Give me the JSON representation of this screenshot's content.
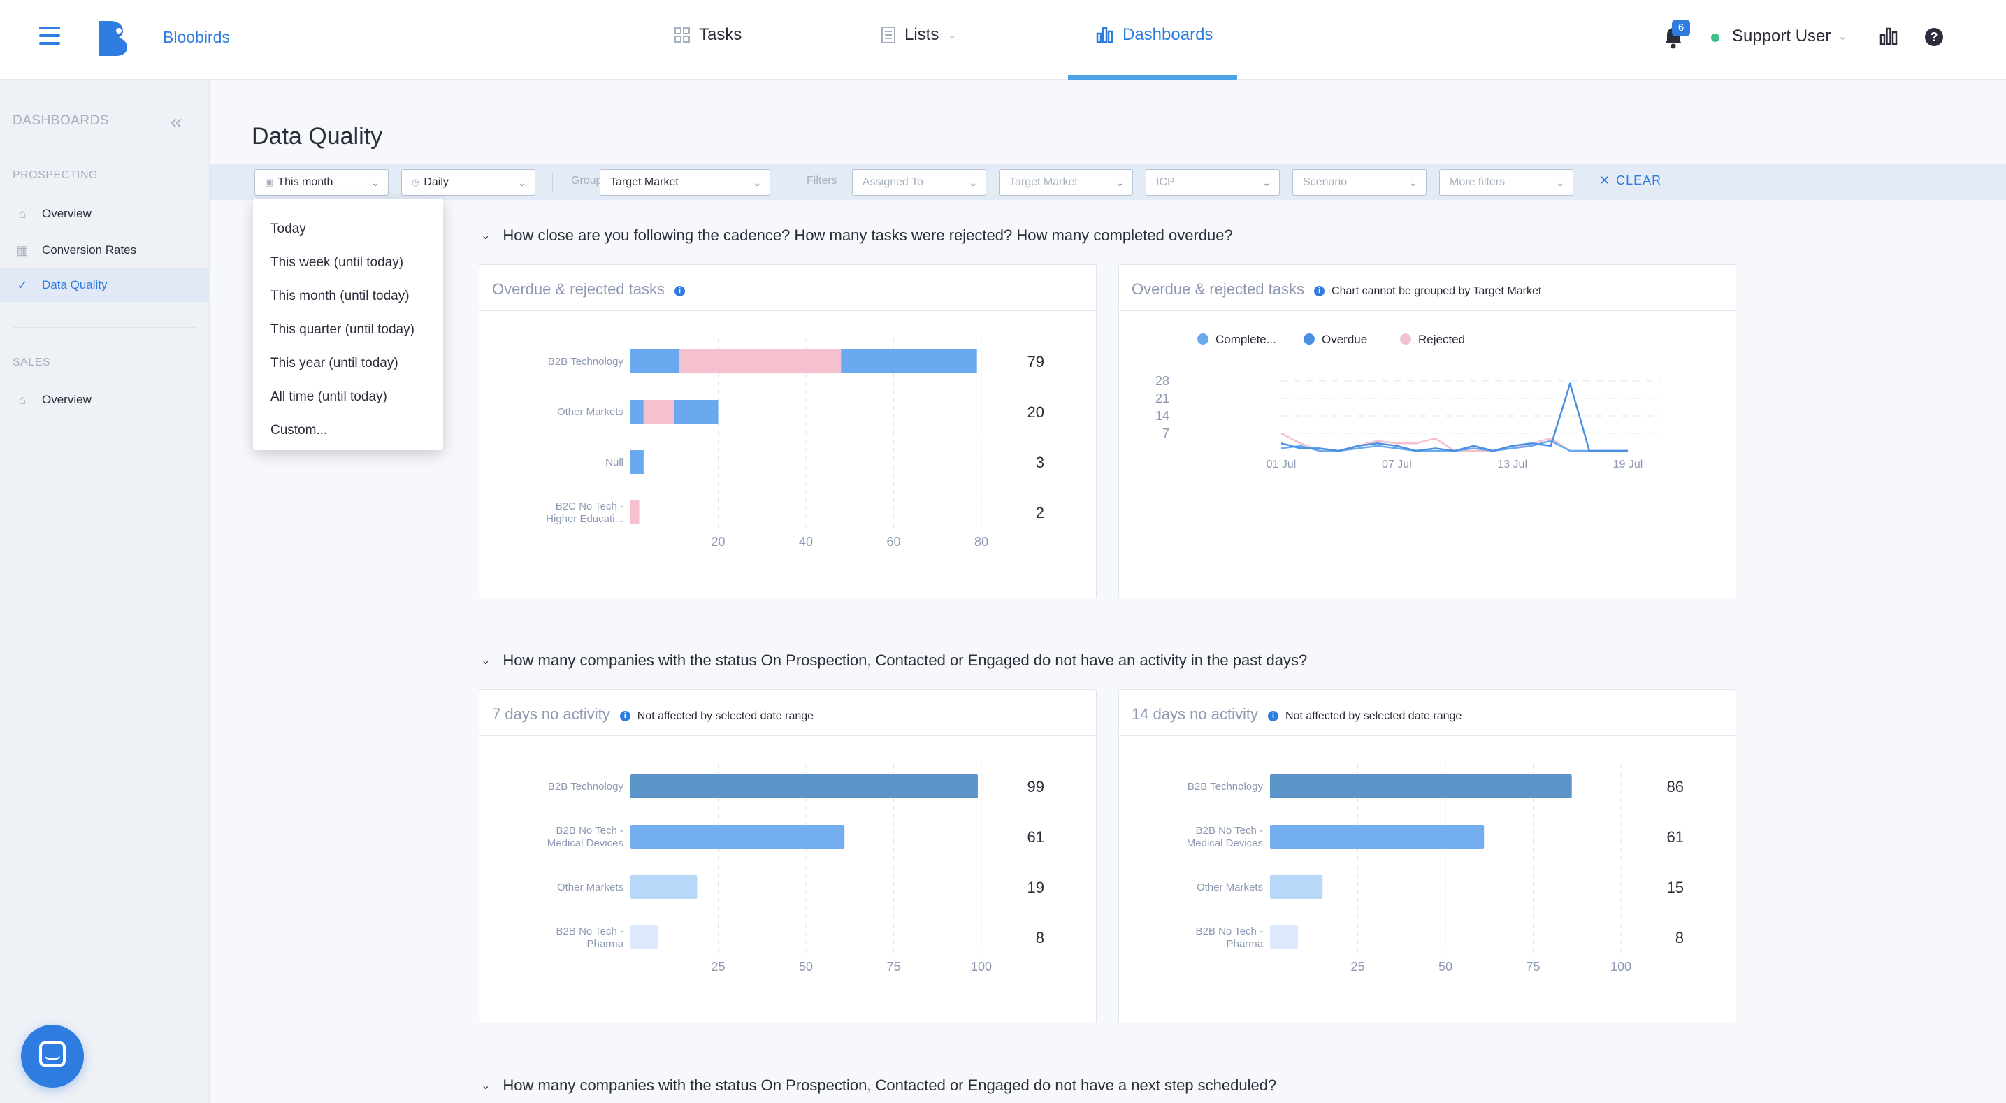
{
  "app": {
    "brand": "Bloobirds"
  },
  "nav": {
    "tasks": "Tasks",
    "lists": "Lists",
    "dashboards": "Dashboards",
    "notifications_count": "6",
    "user": "Support User"
  },
  "sidebar": {
    "header": "DASHBOARDS",
    "prospecting_label": "PROSPECTING",
    "prospecting_items": [
      "Overview",
      "Conversion Rates",
      "Data Quality"
    ],
    "sales_label": "SALES",
    "sales_items": [
      "Overview"
    ]
  },
  "page": {
    "title": "Data Quality"
  },
  "filters": {
    "date_range": "This month",
    "granularity": "Daily",
    "group_by_label": "Group by",
    "group_by_value": "Target Market",
    "filters_label": "Filters",
    "assigned_to": "Assigned To",
    "target_market": "Target Market",
    "icp": "ICP",
    "scenario": "Scenario",
    "more_filters": "More filters",
    "clear": "CLEAR"
  },
  "date_dropdown": {
    "options": [
      "Today",
      "This week (until today)",
      "This month (until today)",
      "This quarter (until today)",
      "This year (until today)",
      "All time (until today)",
      "Custom..."
    ]
  },
  "questions": [
    "How close are you following the cadence? How many tasks were rejected? How many completed overdue?",
    "How many companies with the status On Prospection, Contacted or Engaged do not have an activity in the past days?",
    "How many companies with the status On Prospection, Contacted or Engaged do not have a next step scheduled?"
  ],
  "cards": {
    "overdue_bar": {
      "title": "Overdue & rejected tasks",
      "note": ""
    },
    "overdue_line": {
      "title": "Overdue & rejected tasks",
      "note": "Chart cannot be grouped by Target Market"
    },
    "seven_days": {
      "title": "7 days no activity",
      "note": "Not affected by selected date range"
    },
    "fourteen_days": {
      "title": "14 days no activity",
      "note": "Not affected by selected date range"
    }
  },
  "colors": {
    "completed": "#6aa8f0",
    "overdue": "#4a90e2",
    "rejected": "#f5c1cf",
    "bar_dark": "#5b95c9",
    "bar_mid": "#72aef0",
    "bar_light": "#b8d8f8",
    "bar_faint": "#dceafc"
  },
  "chart_data": [
    {
      "type": "bar",
      "orientation": "horizontal",
      "stacked": true,
      "categories": [
        "B2B Technology",
        "Other Markets",
        "Null",
        "B2C No Tech - Higher Educati..."
      ],
      "series": [
        {
          "values": [
            11,
            3,
            3,
            0
          ]
        },
        {
          "values": [
            37,
            7,
            0,
            2
          ]
        },
        {
          "values": [
            31,
            10,
            0,
            0
          ]
        }
      ],
      "totals": [
        79,
        20,
        3,
        2
      ],
      "xticks": [
        20,
        40,
        60,
        80
      ],
      "xlim": [
        0,
        80
      ]
    },
    {
      "type": "line",
      "x": [
        "01 Jul",
        "02 Jul",
        "03 Jul",
        "04 Jul",
        "05 Jul",
        "06 Jul",
        "07 Jul",
        "08 Jul",
        "09 Jul",
        "10 Jul",
        "11 Jul",
        "12 Jul",
        "13 Jul",
        "14 Jul",
        "15 Jul",
        "16 Jul",
        "17 Jul",
        "18 Jul",
        "19 Jul"
      ],
      "xticks": [
        "01 Jul",
        "07 Jul",
        "13 Jul",
        "19 Jul"
      ],
      "yticks": [
        7,
        14,
        21,
        28
      ],
      "ylim": [
        0,
        28
      ],
      "series": [
        {
          "name": "Complete...",
          "values": [
            1,
            2,
            0,
            0,
            1,
            2,
            1,
            0,
            0,
            0,
            1,
            0,
            1,
            2,
            4,
            0,
            0,
            0,
            0
          ]
        },
        {
          "name": "Overdue",
          "values": [
            3,
            1,
            1,
            0,
            2,
            3,
            2,
            0,
            1,
            0,
            2,
            0,
            2,
            3,
            2,
            27,
            0,
            0,
            0
          ]
        },
        {
          "name": "Rejected",
          "values": [
            7,
            3,
            0,
            0,
            2,
            4,
            3,
            3,
            5,
            0,
            0,
            0,
            1,
            3,
            5,
            0,
            0,
            0,
            0
          ]
        }
      ]
    },
    {
      "type": "bar",
      "orientation": "horizontal",
      "categories": [
        "B2B Technology",
        "B2B No Tech - Medical Devices",
        "Other Markets",
        "B2B No Tech - Pharma"
      ],
      "values": [
        99,
        61,
        19,
        8
      ],
      "xticks": [
        25,
        50,
        75,
        100
      ],
      "xlim": [
        0,
        100
      ]
    },
    {
      "type": "bar",
      "orientation": "horizontal",
      "categories": [
        "B2B Technology",
        "B2B No Tech - Medical Devices",
        "Other Markets",
        "B2B No Tech - Pharma"
      ],
      "values": [
        86,
        61,
        15,
        8
      ],
      "xticks": [
        25,
        50,
        75,
        100
      ],
      "xlim": [
        0,
        100
      ]
    }
  ]
}
